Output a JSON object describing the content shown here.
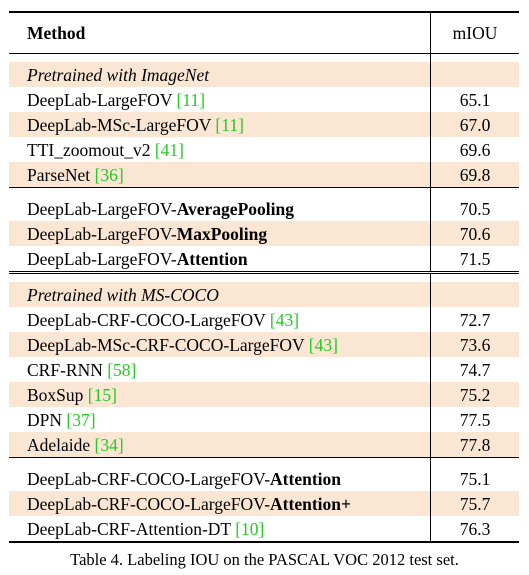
{
  "header": {
    "method": "Method",
    "metric": "mIOU"
  },
  "sections": [
    {
      "title": "Pretrained with ImageNet",
      "groups": [
        [
          {
            "pre": "DeepLab-LargeFOV ",
            "bold": "",
            "cite": "[11]",
            "value": "65.1"
          },
          {
            "pre": "DeepLab-MSc-LargeFOV ",
            "bold": "",
            "cite": "[11]",
            "value": "67.0"
          },
          {
            "pre": "TTI_zoomout_v2 ",
            "bold": "",
            "cite": "[41]",
            "value": "69.6"
          },
          {
            "pre": "ParseNet ",
            "bold": "",
            "cite": "[36]",
            "value": "69.8"
          }
        ],
        [
          {
            "pre": "DeepLab-LargeFOV-",
            "bold": "AveragePooling",
            "cite": "",
            "value": "70.5"
          },
          {
            "pre": "DeepLab-LargeFOV-",
            "bold": "MaxPooling",
            "cite": "",
            "value": "70.6"
          },
          {
            "pre": "DeepLab-LargeFOV-",
            "bold": "Attention",
            "cite": "",
            "value": "71.5"
          }
        ]
      ]
    },
    {
      "title": "Pretrained with MS-COCO",
      "groups": [
        [
          {
            "pre": "DeepLab-CRF-COCO-LargeFOV ",
            "bold": "",
            "cite": "[43]",
            "value": "72.7"
          },
          {
            "pre": "DeepLab-MSc-CRF-COCO-LargeFOV ",
            "bold": "",
            "cite": "[43]",
            "value": "73.6"
          },
          {
            "pre": "CRF-RNN ",
            "bold": "",
            "cite": "[58]",
            "value": "74.7"
          },
          {
            "pre": "BoxSup ",
            "bold": "",
            "cite": "[15]",
            "value": "75.2"
          },
          {
            "pre": "DPN ",
            "bold": "",
            "cite": "[37]",
            "value": "77.5"
          },
          {
            "pre": "Adelaide ",
            "bold": "",
            "cite": "[34]",
            "value": "77.8"
          }
        ],
        [
          {
            "pre": "DeepLab-CRF-COCO-LargeFOV-",
            "bold": "Attention",
            "cite": "",
            "value": "75.1"
          },
          {
            "pre": "DeepLab-CRF-COCO-LargeFOV-",
            "bold": "Attention+",
            "cite": "",
            "value": "75.7"
          },
          {
            "pre": "DeepLab-CRF-Attention-DT ",
            "bold": "",
            "cite": "[10]",
            "value": "76.3"
          }
        ]
      ]
    }
  ],
  "caption": "Table 4. Labeling IOU on the PASCAL VOC 2012 test set.",
  "colors": {
    "shade": "#fbe5d3",
    "citation": "#22cc22"
  }
}
